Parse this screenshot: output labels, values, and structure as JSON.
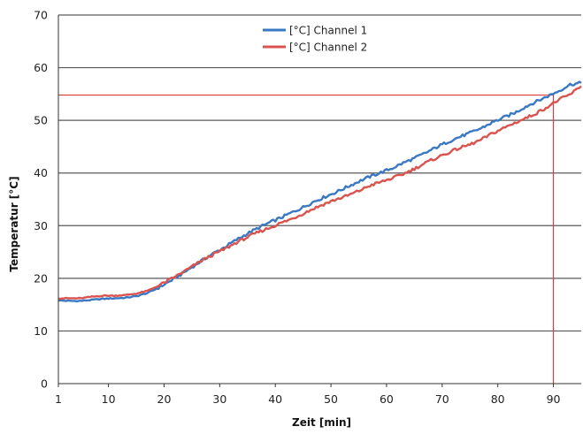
{
  "chart_data": {
    "type": "line",
    "title": "",
    "xlabel": "Zeit [min]",
    "ylabel": "Temperatur [°C]",
    "xlim": [
      1,
      95
    ],
    "ylim": [
      0,
      70
    ],
    "x_ticks": [
      1,
      10,
      20,
      30,
      40,
      50,
      60,
      70,
      80,
      90
    ],
    "y_ticks": [
      0,
      10,
      20,
      30,
      40,
      50,
      60,
      70
    ],
    "grid": "horizontal",
    "legend_position": "top-center",
    "series": [
      {
        "name": "[°C] Channel 1",
        "color": "#3a78c3",
        "x": [
          1,
          3,
          5,
          7,
          9,
          11,
          13,
          15,
          17,
          19,
          21,
          23,
          25,
          27,
          29,
          31,
          33,
          35,
          37,
          39,
          41,
          43,
          45,
          47,
          49,
          51,
          53,
          55,
          57,
          59,
          61,
          63,
          65,
          67,
          69,
          71,
          73,
          75,
          77,
          79,
          81,
          83,
          85,
          87,
          89,
          91,
          93,
          95
        ],
        "y": [
          15.8,
          15.7,
          15.7,
          15.9,
          16.1,
          16.2,
          16.3,
          16.6,
          17.2,
          18.2,
          19.4,
          20.7,
          22.1,
          23.5,
          24.8,
          26.0,
          27.3,
          28.5,
          29.6,
          30.6,
          31.5,
          32.5,
          33.5,
          34.6,
          35.5,
          36.4,
          37.4,
          38.4,
          39.3,
          40.1,
          40.9,
          41.9,
          42.8,
          43.8,
          44.9,
          45.9,
          46.8,
          47.6,
          48.5,
          49.6,
          50.5,
          51.4,
          52.6,
          53.6,
          54.6,
          55.6,
          56.8,
          57.1
        ]
      },
      {
        "name": "[°C] Channel 2",
        "color": "#d9534f",
        "x": [
          1,
          3,
          5,
          7,
          9,
          11,
          13,
          15,
          17,
          19,
          21,
          23,
          25,
          27,
          29,
          31,
          33,
          35,
          37,
          39,
          41,
          43,
          45,
          47,
          49,
          51,
          53,
          55,
          57,
          59,
          61,
          63,
          65,
          67,
          69,
          71,
          73,
          75,
          77,
          79,
          81,
          83,
          85,
          87,
          89,
          91,
          93,
          95
        ],
        "y": [
          16.2,
          16.2,
          16.2,
          16.5,
          16.7,
          16.7,
          16.8,
          17.1,
          17.6,
          18.6,
          19.7,
          20.9,
          22.2,
          23.5,
          24.6,
          25.6,
          26.8,
          27.8,
          28.8,
          29.6,
          30.5,
          31.3,
          32.3,
          33.3,
          34.2,
          35.0,
          35.7,
          36.6,
          37.6,
          38.3,
          39.0,
          39.8,
          40.8,
          41.9,
          42.9,
          43.8,
          44.7,
          45.4,
          46.3,
          47.5,
          48.5,
          49.5,
          50.4,
          51.4,
          52.6,
          53.9,
          54.9,
          56.5
        ]
      }
    ],
    "reference_lines": {
      "color": "#e03a3a",
      "horizontal_y": 54.8,
      "vertical_x": 90
    }
  }
}
